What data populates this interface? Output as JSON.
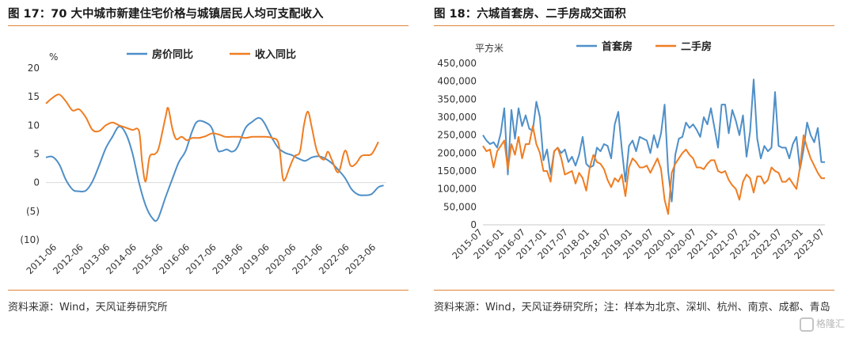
{
  "left": {
    "title": "图 17：70 大中城市新建住宅价格与城镇居民人均可支配收入",
    "source": "资料来源：Wind，天风证券研究所",
    "chart_data": {
      "type": "line",
      "unit_label": "%",
      "ylim": [
        -10,
        20
      ],
      "y_ticks": [
        20,
        15,
        10,
        5,
        0,
        -5,
        -10
      ],
      "y_tick_labels": [
        "20",
        "15",
        "10",
        "5",
        "0",
        "(5)",
        "(10)"
      ],
      "x_ticks": [
        "2011-06",
        "2012-06",
        "2013-06",
        "2014-06",
        "2015-06",
        "2016-06",
        "2017-06",
        "2018-06",
        "2019-06",
        "2020-06",
        "2021-06",
        "2022-06",
        "2023-06"
      ],
      "xlim": [
        2011.0,
        2023.8
      ],
      "grid": false,
      "legend": "top-center",
      "series": [
        {
          "name": "房价同比",
          "color": "#4e8fc8",
          "points": [
            [
              2011.0,
              4.4
            ],
            [
              2011.25,
              4.5
            ],
            [
              2011.5,
              3.2
            ],
            [
              2011.75,
              0.5
            ],
            [
              2012.0,
              -1.2
            ],
            [
              2012.2,
              -1.5
            ],
            [
              2012.5,
              -1.4
            ],
            [
              2012.75,
              0.2
            ],
            [
              2013.0,
              3.0
            ],
            [
              2013.25,
              6.0
            ],
            [
              2013.5,
              8.0
            ],
            [
              2013.75,
              9.8
            ],
            [
              2014.0,
              8.6
            ],
            [
              2014.25,
              5.2
            ],
            [
              2014.5,
              0.0
            ],
            [
              2014.75,
              -4.0
            ],
            [
              2015.0,
              -6.2
            ],
            [
              2015.2,
              -6.4
            ],
            [
              2015.5,
              -2.5
            ],
            [
              2015.75,
              0.6
            ],
            [
              2016.0,
              3.6
            ],
            [
              2016.25,
              5.5
            ],
            [
              2016.5,
              9.0
            ],
            [
              2016.7,
              10.7
            ],
            [
              2017.0,
              10.5
            ],
            [
              2017.25,
              9.4
            ],
            [
              2017.45,
              5.8
            ],
            [
              2017.6,
              5.5
            ],
            [
              2017.8,
              5.8
            ],
            [
              2018.0,
              5.4
            ],
            [
              2018.2,
              6.2
            ],
            [
              2018.5,
              9.5
            ],
            [
              2018.75,
              10.6
            ],
            [
              2019.0,
              11.3
            ],
            [
              2019.2,
              10.5
            ],
            [
              2019.5,
              7.8
            ],
            [
              2019.75,
              6.0
            ],
            [
              2020.0,
              5.2
            ],
            [
              2020.25,
              4.8
            ],
            [
              2020.5,
              4.2
            ],
            [
              2020.75,
              3.8
            ],
            [
              2021.0,
              4.4
            ],
            [
              2021.25,
              4.6
            ],
            [
              2021.5,
              4.2
            ],
            [
              2021.75,
              3.4
            ],
            [
              2022.0,
              2.2
            ],
            [
              2022.25,
              0.8
            ],
            [
              2022.5,
              -1.2
            ],
            [
              2022.75,
              -2.1
            ],
            [
              2023.0,
              -2.2
            ],
            [
              2023.25,
              -2.0
            ],
            [
              2023.5,
              -0.8
            ],
            [
              2023.7,
              -0.5
            ]
          ]
        },
        {
          "name": "收入同比",
          "color": "#ef7d22",
          "points": [
            [
              2011.0,
              13.8
            ],
            [
              2011.25,
              14.8
            ],
            [
              2011.5,
              15.4
            ],
            [
              2011.75,
              14.2
            ],
            [
              2012.0,
              12.6
            ],
            [
              2012.25,
              12.8
            ],
            [
              2012.5,
              11.4
            ],
            [
              2012.75,
              9.2
            ],
            [
              2013.0,
              9.0
            ],
            [
              2013.25,
              10.0
            ],
            [
              2013.5,
              10.5
            ],
            [
              2013.75,
              10.0
            ],
            [
              2014.0,
              9.6
            ],
            [
              2014.25,
              9.2
            ],
            [
              2014.5,
              9.0
            ],
            [
              2014.62,
              3.5
            ],
            [
              2014.75,
              0.2
            ],
            [
              2014.9,
              4.5
            ],
            [
              2015.1,
              5.0
            ],
            [
              2015.25,
              6.2
            ],
            [
              2015.5,
              11.5
            ],
            [
              2015.6,
              13.0
            ],
            [
              2015.75,
              9.5
            ],
            [
              2015.9,
              7.6
            ],
            [
              2016.1,
              8.0
            ],
            [
              2016.3,
              7.4
            ],
            [
              2016.5,
              7.8
            ],
            [
              2016.75,
              7.8
            ],
            [
              2017.0,
              8.1
            ],
            [
              2017.25,
              8.6
            ],
            [
              2017.5,
              8.4
            ],
            [
              2017.75,
              8.0
            ],
            [
              2018.0,
              8.0
            ],
            [
              2018.25,
              8.0
            ],
            [
              2018.5,
              7.8
            ],
            [
              2018.75,
              8.0
            ],
            [
              2019.0,
              8.0
            ],
            [
              2019.25,
              8.0
            ],
            [
              2019.5,
              7.8
            ],
            [
              2019.75,
              6.8
            ],
            [
              2019.9,
              1.0
            ],
            [
              2020.0,
              0.6
            ],
            [
              2020.15,
              2.5
            ],
            [
              2020.35,
              4.6
            ],
            [
              2020.55,
              5.4
            ],
            [
              2020.7,
              10.0
            ],
            [
              2020.85,
              12.4
            ],
            [
              2021.0,
              9.6
            ],
            [
              2021.2,
              5.4
            ],
            [
              2021.45,
              4.0
            ],
            [
              2021.6,
              5.4
            ],
            [
              2021.75,
              4.0
            ],
            [
              2022.0,
              1.8
            ],
            [
              2022.25,
              5.6
            ],
            [
              2022.45,
              3.0
            ],
            [
              2022.65,
              3.3
            ],
            [
              2022.85,
              4.6
            ],
            [
              2023.0,
              4.8
            ],
            [
              2023.25,
              5.0
            ],
            [
              2023.5,
              7.1
            ]
          ]
        }
      ]
    }
  },
  "right": {
    "title": "图 18：六城首套房、二手房成交面积",
    "source": "资料来源：Wind，天风证券研究所；注：样本为北京、深圳、杭州、南京、成都、青岛",
    "chart_data": {
      "type": "line",
      "unit_label": "平方米",
      "ylim": [
        0,
        450000
      ],
      "y_ticks": [
        450000,
        400000,
        350000,
        300000,
        250000,
        200000,
        150000,
        100000,
        50000,
        0
      ],
      "y_tick_labels": [
        "450,000",
        "400,000",
        "350,000",
        "300,000",
        "250,000",
        "200,000",
        "150,000",
        "100,000",
        "50,000",
        "0"
      ],
      "x_ticks": [
        "2015-07",
        "2016-01",
        "2016-07",
        "2017-01",
        "2017-07",
        "2018-01",
        "2018-07",
        "2019-01",
        "2019-07",
        "2020-01",
        "2020-07",
        "2021-01",
        "2021-07",
        "2022-01",
        "2022-07",
        "2023-01",
        "2023-07"
      ],
      "months_count": 97,
      "grid": false,
      "legend": "top-center",
      "series": [
        {
          "name": "首套房",
          "color": "#4e8fc8",
          "values": [
            250000,
            235000,
            225000,
            230000,
            215000,
            255000,
            325000,
            140000,
            320000,
            240000,
            325000,
            275000,
            305000,
            268000,
            262000,
            343000,
            300000,
            180000,
            210000,
            140000,
            205000,
            215000,
            200000,
            210000,
            175000,
            190000,
            165000,
            195000,
            245000,
            170000,
            160000,
            165000,
            215000,
            205000,
            225000,
            220000,
            185000,
            280000,
            315000,
            210000,
            120000,
            220000,
            235000,
            205000,
            245000,
            240000,
            235000,
            200000,
            250000,
            215000,
            255000,
            335000,
            150000,
            65000,
            195000,
            240000,
            245000,
            285000,
            270000,
            280000,
            265000,
            245000,
            300000,
            280000,
            325000,
            270000,
            215000,
            335000,
            335000,
            255000,
            320000,
            290000,
            250000,
            305000,
            190000,
            260000,
            405000,
            240000,
            185000,
            220000,
            205000,
            215000,
            370000,
            220000,
            215000,
            215000,
            185000,
            225000,
            245000,
            155000,
            210000,
            285000,
            250000,
            230000,
            270000,
            175000,
            175000
          ]
        },
        {
          "name": "二手房",
          "color": "#ef7d22",
          "values": [
            220000,
            205000,
            210000,
            160000,
            205000,
            220000,
            235000,
            155000,
            225000,
            195000,
            245000,
            185000,
            225000,
            225000,
            275000,
            225000,
            200000,
            150000,
            150000,
            120000,
            205000,
            215000,
            185000,
            140000,
            145000,
            150000,
            115000,
            145000,
            130000,
            95000,
            160000,
            195000,
            175000,
            170000,
            155000,
            125000,
            105000,
            130000,
            120000,
            140000,
            80000,
            160000,
            185000,
            175000,
            160000,
            160000,
            165000,
            145000,
            165000,
            185000,
            155000,
            70000,
            30000,
            145000,
            170000,
            185000,
            200000,
            210000,
            195000,
            185000,
            160000,
            160000,
            155000,
            170000,
            180000,
            180000,
            150000,
            145000,
            150000,
            125000,
            110000,
            100000,
            70000,
            120000,
            140000,
            130000,
            90000,
            135000,
            135000,
            115000,
            125000,
            160000,
            150000,
            145000,
            120000,
            120000,
            130000,
            115000,
            100000,
            160000,
            250000,
            215000,
            185000,
            165000,
            145000,
            130000,
            130000
          ]
        }
      ]
    }
  },
  "watermark": {
    "text": "格隆汇"
  }
}
